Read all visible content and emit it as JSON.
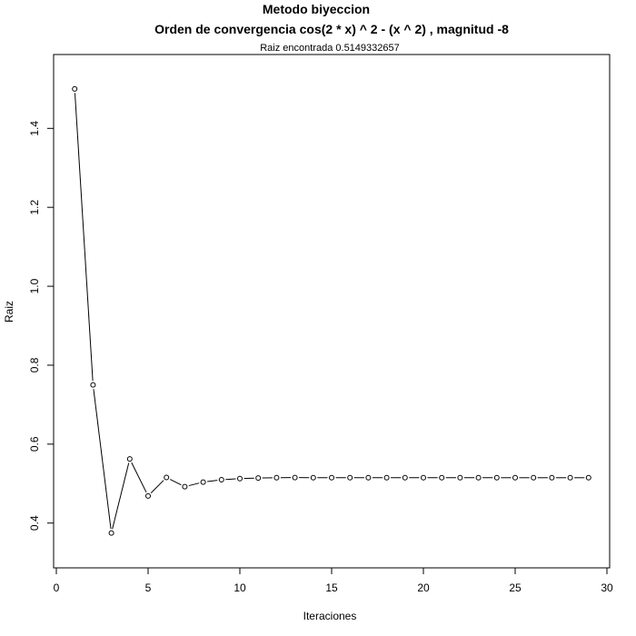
{
  "chart_data": {
    "type": "line",
    "title": "Metodo biyeccion",
    "title_line2": "Orden de convergencia cos(2 * x) ^ 2 - (x ^ 2) , magnitud -8",
    "subtitle": "Raiz encontrada 0.5149332657",
    "xlabel": "Iteraciones",
    "ylabel": "Raiz",
    "xlim": [
      0,
      30
    ],
    "ylim": [
      0.3303,
      1.5434
    ],
    "x_ticks": [
      0,
      5,
      10,
      15,
      20,
      25,
      30
    ],
    "y_ticks": [
      0.4,
      0.6,
      0.8,
      1.0,
      1.2,
      1.4
    ],
    "y_tick_labels": [
      "0.4",
      "0.6",
      "0.8",
      "1.0",
      "1.2",
      "1.4"
    ],
    "grid": false,
    "marker": "open-circle",
    "line_color": "#000000",
    "x": [
      1,
      2,
      3,
      4,
      5,
      6,
      7,
      8,
      9,
      10,
      11,
      12,
      13,
      14,
      15,
      16,
      17,
      18,
      19,
      20,
      21,
      22,
      23,
      24,
      25,
      26,
      27,
      28,
      29
    ],
    "values": [
      1.5,
      0.75,
      0.375,
      0.5625,
      0.46875,
      0.515625,
      0.4921875,
      0.50390625,
      0.509765625,
      0.5126953,
      0.5141602,
      0.5148926,
      0.5152588,
      0.5150757,
      0.5149841,
      0.5149384,
      0.5149155,
      0.5149269,
      0.5149326,
      0.5149355,
      0.5149341,
      0.5149334,
      0.514933,
      0.5149332,
      0.5149333,
      0.5149332,
      0.5149333,
      0.5149333,
      0.5149333
    ]
  }
}
